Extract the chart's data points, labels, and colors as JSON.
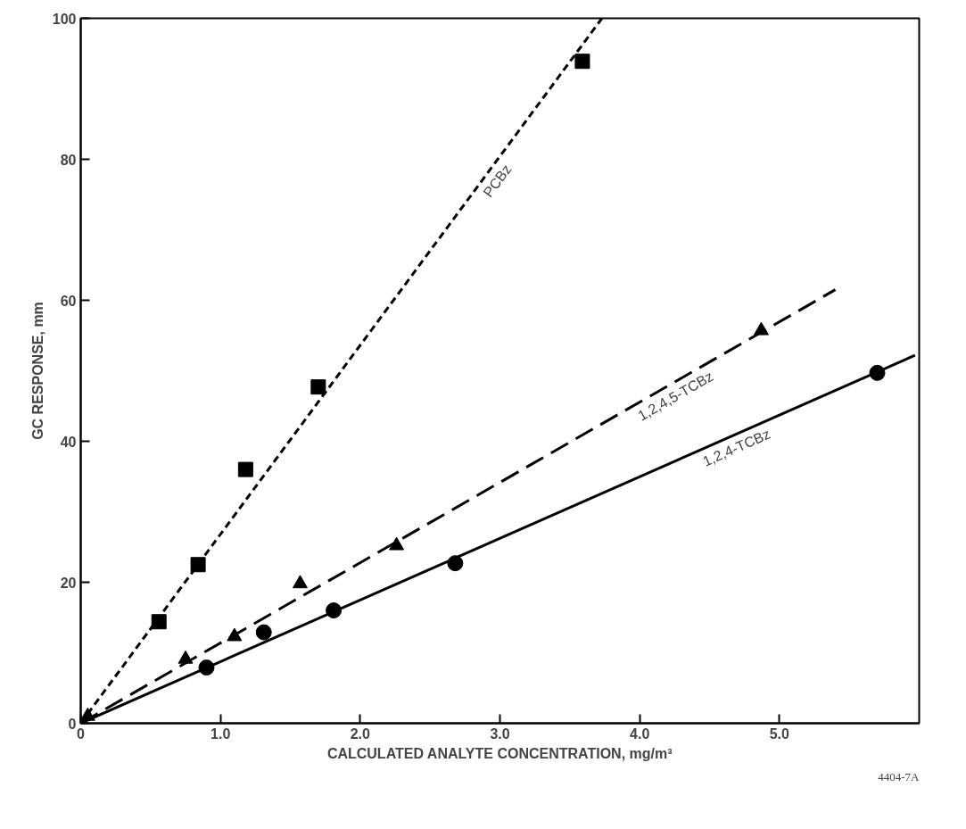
{
  "chart_data": {
    "type": "scatter",
    "xlabel": "CALCULATED ANALYTE CONCENTRATION, mg/m³",
    "ylabel": "GC RESPONSE, mm",
    "xlim": [
      0,
      6
    ],
    "ylim": [
      0,
      100
    ],
    "xticks": [
      0,
      {
        "value": 1,
        "label": "1.0"
      },
      {
        "value": 2,
        "label": "2.0"
      },
      {
        "value": 3,
        "label": "3.0"
      },
      {
        "value": 4,
        "label": "4.0"
      },
      {
        "value": 5,
        "label": "5.0"
      }
    ],
    "yticks": [
      0,
      20,
      40,
      60,
      80,
      100
    ],
    "grid": false,
    "legend": false,
    "series": [
      {
        "marker": "square",
        "color": "#000000",
        "x": [
          0.56,
          0.84,
          1.18,
          1.7,
          3.59
        ],
        "values": [
          14.4,
          22.5,
          36,
          47.7,
          93.9
        ]
      },
      {
        "marker": "triangle",
        "color": "#000000",
        "x": [
          0.05,
          0.75,
          1.1,
          1.57,
          2.26,
          4.87
        ],
        "values": [
          1,
          9.1,
          12.3,
          19.8,
          25.2,
          55.7
        ]
      },
      {
        "marker": "circle",
        "color": "#000000",
        "x": [
          0.9,
          1.31,
          1.81,
          2.68,
          5.7
        ],
        "values": [
          7.9,
          12.9,
          16,
          22.7,
          49.7
        ]
      },
      {
        "type": "line",
        "name": "PCBz",
        "line_style": "dashed",
        "color": "#000000",
        "x": [
          0,
          3.73
        ],
        "values": [
          0,
          100
        ]
      },
      {
        "type": "line",
        "name": "1,2,4,5-TCBz",
        "line_style": "longdash",
        "color": "#000000",
        "x": [
          0,
          5.4
        ],
        "values": [
          0,
          61.5
        ]
      },
      {
        "type": "line",
        "name": "1,2,4-TCBz",
        "line_style": "solid",
        "color": "#000000",
        "x": [
          0,
          5.97
        ],
        "values": [
          0,
          52.2
        ]
      }
    ],
    "annotations": [
      "4404-7A"
    ]
  }
}
